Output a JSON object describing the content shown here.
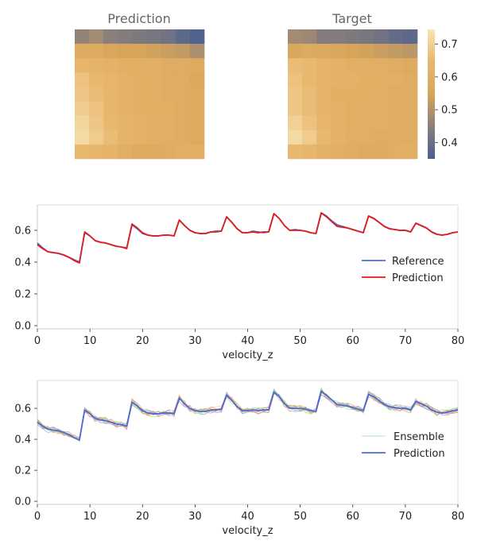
{
  "chart_data": [
    {
      "type": "heatmap",
      "title": "Prediction",
      "rows": 9,
      "cols": 9,
      "values": [
        [
          0.46,
          0.48,
          0.45,
          0.44,
          0.43,
          0.42,
          0.41,
          0.38,
          0.36
        ],
        [
          0.58,
          0.58,
          0.56,
          0.55,
          0.55,
          0.54,
          0.53,
          0.52,
          0.49
        ],
        [
          0.64,
          0.63,
          0.62,
          0.61,
          0.61,
          0.6,
          0.59,
          0.59,
          0.58
        ],
        [
          0.67,
          0.65,
          0.64,
          0.62,
          0.61,
          0.61,
          0.59,
          0.59,
          0.57
        ],
        [
          0.68,
          0.66,
          0.64,
          0.62,
          0.61,
          0.61,
          0.59,
          0.59,
          0.58
        ],
        [
          0.69,
          0.67,
          0.64,
          0.62,
          0.61,
          0.61,
          0.61,
          0.59,
          0.58
        ],
        [
          0.71,
          0.68,
          0.65,
          0.63,
          0.62,
          0.61,
          0.6,
          0.59,
          0.58
        ],
        [
          0.72,
          0.69,
          0.66,
          0.63,
          0.62,
          0.61,
          0.6,
          0.59,
          0.58
        ],
        [
          0.65,
          0.64,
          0.63,
          0.6,
          0.58,
          0.58,
          0.59,
          0.6,
          0.61
        ]
      ]
    },
    {
      "type": "heatmap",
      "title": "Target",
      "rows": 9,
      "cols": 9,
      "colorbar": {
        "min": 0.35,
        "max": 0.745,
        "ticks": [
          0.4,
          0.5,
          0.6,
          0.7
        ]
      },
      "colormap": [
        "#4a5f91",
        "#8a7f7a",
        "#d7a55a",
        "#e8b66c",
        "#f7e6b7"
      ],
      "values": [
        [
          0.48,
          0.47,
          0.44,
          0.44,
          0.43,
          0.42,
          0.41,
          0.39,
          0.38
        ],
        [
          0.56,
          0.58,
          0.57,
          0.56,
          0.55,
          0.54,
          0.53,
          0.52,
          0.51
        ],
        [
          0.66,
          0.65,
          0.63,
          0.62,
          0.61,
          0.6,
          0.6,
          0.59,
          0.58
        ],
        [
          0.67,
          0.65,
          0.63,
          0.62,
          0.62,
          0.61,
          0.61,
          0.6,
          0.59
        ],
        [
          0.68,
          0.66,
          0.63,
          0.61,
          0.61,
          0.61,
          0.6,
          0.59,
          0.59
        ],
        [
          0.68,
          0.66,
          0.63,
          0.62,
          0.61,
          0.6,
          0.6,
          0.59,
          0.59
        ],
        [
          0.7,
          0.67,
          0.64,
          0.62,
          0.61,
          0.6,
          0.6,
          0.59,
          0.59
        ],
        [
          0.72,
          0.69,
          0.65,
          0.62,
          0.6,
          0.6,
          0.59,
          0.59,
          0.59
        ],
        [
          0.65,
          0.64,
          0.62,
          0.6,
          0.59,
          0.58,
          0.58,
          0.6,
          0.61
        ]
      ]
    },
    {
      "type": "line",
      "xlabel": "velocity_z",
      "xlim": [
        0,
        80
      ],
      "ylim": [
        -0.02,
        0.76
      ],
      "xticks": [
        0,
        10,
        20,
        30,
        40,
        50,
        60,
        70,
        80
      ],
      "yticks": [
        0.0,
        0.2,
        0.4,
        0.6
      ],
      "legend": "center-right",
      "x_start": 0,
      "series": [
        {
          "name": "Reference",
          "color": "#4a6bd1",
          "values": [
            0.52,
            0.49,
            0.465,
            0.46,
            0.455,
            0.445,
            0.43,
            0.415,
            0.4,
            0.585,
            0.565,
            0.535,
            0.525,
            0.52,
            0.51,
            0.5,
            0.495,
            0.49,
            0.635,
            0.61,
            0.58,
            0.57,
            0.565,
            0.565,
            0.57,
            0.57,
            0.565,
            0.665,
            0.63,
            0.6,
            0.585,
            0.58,
            0.58,
            0.59,
            0.595,
            0.595,
            0.685,
            0.65,
            0.61,
            0.585,
            0.585,
            0.595,
            0.59,
            0.585,
            0.59,
            0.705,
            0.675,
            0.63,
            0.6,
            0.605,
            0.6,
            0.595,
            0.585,
            0.58,
            0.71,
            0.69,
            0.66,
            0.635,
            0.625,
            0.615,
            0.605,
            0.595,
            0.585,
            0.69,
            0.675,
            0.65,
            0.625,
            0.61,
            0.605,
            0.6,
            0.6,
            0.59,
            0.645,
            0.63,
            0.615,
            0.59,
            0.575,
            0.57,
            0.575,
            0.585,
            0.59
          ]
        },
        {
          "name": "Prediction",
          "color": "#e31a1c",
          "values": [
            0.51,
            0.485,
            0.465,
            0.46,
            0.455,
            0.445,
            0.43,
            0.41,
            0.395,
            0.59,
            0.565,
            0.535,
            0.525,
            0.52,
            0.51,
            0.5,
            0.495,
            0.485,
            0.64,
            0.615,
            0.585,
            0.57,
            0.565,
            0.565,
            0.57,
            0.57,
            0.565,
            0.665,
            0.63,
            0.6,
            0.585,
            0.58,
            0.58,
            0.59,
            0.59,
            0.595,
            0.685,
            0.65,
            0.61,
            0.585,
            0.585,
            0.59,
            0.585,
            0.59,
            0.59,
            0.705,
            0.675,
            0.63,
            0.6,
            0.6,
            0.6,
            0.595,
            0.585,
            0.58,
            0.71,
            0.685,
            0.655,
            0.625,
            0.62,
            0.615,
            0.605,
            0.595,
            0.585,
            0.69,
            0.675,
            0.65,
            0.625,
            0.61,
            0.605,
            0.6,
            0.6,
            0.59,
            0.645,
            0.63,
            0.615,
            0.59,
            0.575,
            0.57,
            0.575,
            0.585,
            0.59
          ]
        }
      ]
    },
    {
      "type": "line",
      "xlabel": "velocity_z",
      "xlim": [
        0,
        80
      ],
      "ylim": [
        -0.02,
        0.78
      ],
      "xticks": [
        0,
        10,
        20,
        30,
        40,
        50,
        60,
        70,
        80
      ],
      "yticks": [
        0.0,
        0.2,
        0.4,
        0.6
      ],
      "legend": "center-right",
      "ensemble_colors": [
        "#8dd3c7",
        "#fb8072",
        "#80b1d3",
        "#b3de69",
        "#bc80bd",
        "#fdb462",
        "#66c2a5",
        "#fc8d62",
        "#a6d854",
        "#e78ac3"
      ],
      "ensemble_member_count": 10,
      "ensemble_noise": 0.022,
      "series": [
        {
          "name": "Ensemble",
          "color": "#8dd3c7",
          "values": []
        },
        {
          "name": "Prediction",
          "color": "#4a6bd1",
          "values": [
            0.51,
            0.485,
            0.465,
            0.46,
            0.455,
            0.445,
            0.43,
            0.41,
            0.395,
            0.59,
            0.565,
            0.535,
            0.525,
            0.52,
            0.51,
            0.5,
            0.495,
            0.485,
            0.64,
            0.615,
            0.585,
            0.57,
            0.565,
            0.565,
            0.57,
            0.57,
            0.565,
            0.665,
            0.63,
            0.6,
            0.585,
            0.58,
            0.58,
            0.59,
            0.59,
            0.595,
            0.685,
            0.65,
            0.61,
            0.585,
            0.585,
            0.59,
            0.585,
            0.59,
            0.59,
            0.705,
            0.675,
            0.63,
            0.6,
            0.6,
            0.6,
            0.595,
            0.585,
            0.58,
            0.71,
            0.685,
            0.655,
            0.625,
            0.62,
            0.615,
            0.605,
            0.595,
            0.585,
            0.69,
            0.675,
            0.65,
            0.625,
            0.61,
            0.605,
            0.6,
            0.6,
            0.59,
            0.645,
            0.63,
            0.615,
            0.59,
            0.575,
            0.57,
            0.575,
            0.585,
            0.59
          ]
        }
      ]
    }
  ]
}
